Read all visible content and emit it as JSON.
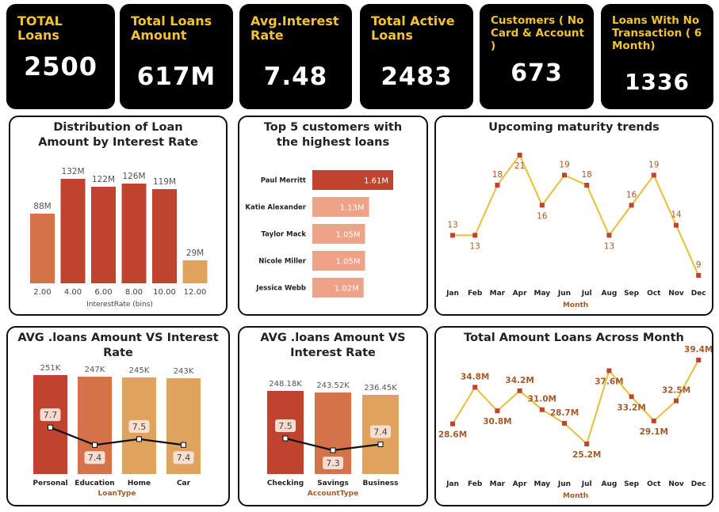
{
  "kpis": [
    {
      "title": "TOTAL Loans",
      "value": "2500"
    },
    {
      "title": "Total Loans Amount",
      "value": "617M"
    },
    {
      "title": "Avg.Interest Rate",
      "value": "7.48"
    },
    {
      "title": "Total Active Loans",
      "value": "2483"
    },
    {
      "title": "Customers ( No Card & Account )",
      "value": "673"
    },
    {
      "title": "Loans With No Transaction ( 6 Month)",
      "value": "1336"
    }
  ],
  "panels": {
    "dist": {
      "title": "Distribution of Loan Amount by Interest Rate"
    },
    "top5": {
      "title": "Top 5 customers with the highest loans"
    },
    "maturity": {
      "title": "Upcoming maturity trends"
    },
    "avg_loantype": {
      "title": "AVG .loans Amount VS Interest Rate"
    },
    "avg_account": {
      "title": "AVG .loans Amount VS Interest Rate"
    },
    "monthly": {
      "title": "Total Amount Loans Across Month"
    }
  },
  "colors": {
    "kpi_title": "#f1c232",
    "red": "#c0432f",
    "orange": "#d4724a",
    "salmon": "#eea287",
    "tan": "#e0a35e",
    "line_yellow": "#e8c444",
    "marker": "#c0432f",
    "label_brown": "#a65a2a"
  },
  "chart_data": [
    {
      "id": "dist",
      "type": "bar",
      "title": "Distribution of Loan Amount by Interest Rate",
      "xlabel": "InterestRate (bins)",
      "ylabel": "",
      "categories": [
        "2.00",
        "4.00",
        "6.00",
        "8.00",
        "10.00",
        "12.00"
      ],
      "values": [
        88,
        132,
        122,
        126,
        119,
        29
      ],
      "labels": [
        "88M",
        "132M",
        "122M",
        "126M",
        "119M",
        "29M"
      ],
      "colors": [
        "#d4724a",
        "#c0432f",
        "#c0432f",
        "#c0432f",
        "#c0432f",
        "#e0a35e"
      ],
      "ylim": [
        0,
        140
      ]
    },
    {
      "id": "top5",
      "type": "bar",
      "orientation": "horizontal",
      "title": "Top 5 customers with the highest loans",
      "categories": [
        "Paul Merritt",
        "Katie Alexander",
        "Taylor Mack",
        "Nicole Miller",
        "Jessica Webb"
      ],
      "values": [
        1.61,
        1.13,
        1.05,
        1.05,
        1.02
      ],
      "labels": [
        "1.61M",
        "1.13M",
        "1.05M",
        "1.05M",
        "1.02M"
      ],
      "colors": [
        "#c0432f",
        "#eea287",
        "#eea287",
        "#eea287",
        "#eea287"
      ],
      "xlim": [
        0,
        1.61
      ]
    },
    {
      "id": "maturity",
      "type": "line",
      "title": "Upcoming maturity trends",
      "xlabel": "Month",
      "categories": [
        "Jan",
        "Feb",
        "Mar",
        "Apr",
        "May",
        "Jun",
        "Jul",
        "Aug",
        "Sep",
        "Oct",
        "Nov",
        "Dec"
      ],
      "values": [
        13,
        13,
        18,
        21,
        16,
        19,
        18,
        13,
        16,
        19,
        14,
        9
      ],
      "labels": [
        "13",
        "13",
        "18",
        "21",
        "16",
        "19",
        "18",
        "13",
        "16",
        "19",
        "14",
        "9"
      ],
      "label_pos": [
        "above",
        "below",
        "above",
        "below",
        "below",
        "above",
        "above",
        "below",
        "above",
        "above",
        "above",
        "above"
      ],
      "ylim": [
        9,
        21
      ]
    },
    {
      "id": "avg_loantype",
      "type": "bar",
      "combo_line": true,
      "title": "AVG .loans Amount VS Interest Rate",
      "xlabel": "LoanType",
      "categories": [
        "Personal",
        "Education",
        "Home",
        "Car"
      ],
      "values": [
        251,
        247,
        245,
        243
      ],
      "labels": [
        "251K",
        "247K",
        "245K",
        "243K"
      ],
      "colors": [
        "#c0432f",
        "#d4724a",
        "#e0a35e",
        "#e0a35e"
      ],
      "ylim": [
        0,
        251
      ],
      "line_values": [
        7.7,
        7.4,
        7.5,
        7.4
      ],
      "line_labels": [
        "7.7",
        "7.4",
        "7.5",
        "7.4"
      ],
      "line_label_pos": [
        "above",
        "below",
        "above",
        "below"
      ],
      "line_ylim": [
        6.9,
        8.6
      ]
    },
    {
      "id": "avg_account",
      "type": "bar",
      "combo_line": true,
      "title": "AVG .loans Amount VS Interest Rate",
      "xlabel": "AccountType",
      "categories": [
        "Checking",
        "Savings",
        "Business"
      ],
      "values": [
        248.18,
        243.52,
        236.45
      ],
      "labels": [
        "248.18K",
        "243.52K",
        "236.45K"
      ],
      "colors": [
        "#c0432f",
        "#d4724a",
        "#e0a35e"
      ],
      "ylim": [
        0,
        248.18
      ],
      "line_values": [
        7.5,
        7.3,
        7.4
      ],
      "line_labels": [
        "7.5",
        "7.3",
        "7.4"
      ],
      "line_label_pos": [
        "above",
        "below",
        "above"
      ],
      "line_ylim": [
        6.9,
        8.3
      ]
    },
    {
      "id": "monthly",
      "type": "line",
      "title": "Total Amount Loans Across Month",
      "xlabel": "Month",
      "categories": [
        "Jan",
        "Feb",
        "Mar",
        "Apr",
        "May",
        "Jun",
        "Jul",
        "Aug",
        "Sep",
        "Oct",
        "Nov",
        "Dec"
      ],
      "values": [
        28.6,
        34.8,
        30.8,
        34.2,
        31.0,
        28.7,
        25.2,
        37.6,
        33.2,
        29.1,
        32.5,
        39.4
      ],
      "labels": [
        "28.6M",
        "34.8M",
        "30.8M",
        "34.2M",
        "31.0M",
        "28.7M",
        "25.2M",
        "37.6M",
        "33.2M",
        "29.1M",
        "32.5M",
        "39.4M"
      ],
      "label_pos": [
        "below",
        "above",
        "below",
        "above",
        "above",
        "above",
        "below",
        "below",
        "below",
        "below",
        "above",
        "above"
      ],
      "ylim": [
        25.2,
        39.4
      ]
    }
  ]
}
